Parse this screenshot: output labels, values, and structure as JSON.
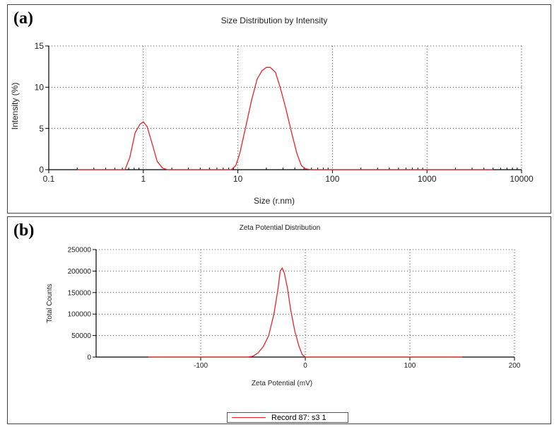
{
  "panels": {
    "a": {
      "label": "(a)"
    },
    "b": {
      "label": "(b)"
    }
  },
  "chart_data": [
    {
      "type": "line",
      "title": "Size Distribution by Intensity",
      "xlabel": "Size (r.nm)",
      "ylabel": "Intensity (%)",
      "xscale": "log",
      "xlim": [
        0.1,
        10000
      ],
      "ylim": [
        0,
        15
      ],
      "xticks": [
        "0.1",
        "1",
        "10",
        "100",
        "1000",
        "10000"
      ],
      "yticks": [
        "0",
        "5",
        "10",
        "15"
      ],
      "grid": true,
      "line_color": "#e8232a",
      "series": [
        {
          "x": [
            0.2,
            0.64,
            0.72,
            0.82,
            0.92,
            1.0,
            1.1,
            1.25,
            1.4,
            1.6,
            1.8,
            2.5,
            5,
            8.5,
            9.5,
            10.5,
            12,
            14,
            16,
            18,
            20,
            22,
            25,
            28,
            32,
            37,
            42,
            47,
            52,
            60,
            100,
            1000,
            5000
          ],
          "y": [
            0,
            0,
            1.5,
            4.5,
            5.5,
            5.8,
            5.2,
            3.0,
            1.0,
            0.2,
            0,
            0,
            0,
            0,
            0.5,
            2.0,
            5.0,
            8.5,
            11.0,
            12.0,
            12.4,
            12.4,
            11.8,
            10.0,
            7.5,
            4.5,
            2.0,
            0.5,
            0.1,
            0,
            0,
            0,
            0
          ]
        }
      ]
    },
    {
      "type": "line",
      "title": "Zeta Potential Distribution",
      "xlabel": "Zeta Potential (mV)",
      "ylabel": "Total Counts",
      "xlim": [
        -200,
        200
      ],
      "ylim": [
        0,
        250000
      ],
      "xticks": [
        "-100",
        "0",
        "100",
        "200"
      ],
      "yticks": [
        "0",
        "50000",
        "100000",
        "150000",
        "200000",
        "250000"
      ],
      "grid": true,
      "line_color": "#e8232a",
      "legend": {
        "position": "bottom-center",
        "entries": [
          "Record 87: s3 1"
        ]
      },
      "series": [
        {
          "name": "Record 87: s3 1",
          "x": [
            -150,
            -55,
            -50,
            -45,
            -40,
            -35,
            -30,
            -26,
            -24,
            -22,
            -20,
            -17,
            -14,
            -10,
            -6,
            -3,
            0,
            150
          ],
          "y": [
            0,
            0,
            2000,
            10000,
            25000,
            50000,
            100000,
            160000,
            200000,
            207000,
            195000,
            160000,
            110000,
            60000,
            25000,
            6000,
            0,
            0
          ]
        }
      ]
    }
  ]
}
